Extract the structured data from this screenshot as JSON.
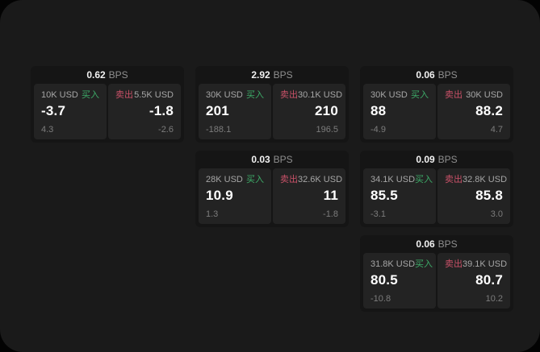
{
  "colors": {
    "background_outer": "#030303",
    "surface": "#1a1a1a",
    "card": "#151515",
    "panel": "#232323",
    "buy_accent": "#3dab68",
    "sell_accent": "#c95168",
    "value_text": "#ffffff",
    "muted_text": "#a6a6a6",
    "faint_text": "#7c7c7c"
  },
  "cards": [
    {
      "bps_value": "0.62",
      "bps_unit": "BPS",
      "buy": {
        "amount": "10K USD",
        "label": "买入",
        "value": "-3.7",
        "delta": "4.3"
      },
      "sell": {
        "amount": "5.5K USD",
        "label": "卖出",
        "value": "-1.8",
        "delta": "-2.6"
      }
    },
    {
      "bps_value": "2.92",
      "bps_unit": "BPS",
      "buy": {
        "amount": "30K USD",
        "label": "买入",
        "value": "201",
        "delta": "-188.1"
      },
      "sell": {
        "amount": "30.1K USD",
        "label": "卖出",
        "value": "210",
        "delta": "196.5"
      }
    },
    {
      "bps_value": "0.06",
      "bps_unit": "BPS",
      "buy": {
        "amount": "30K USD",
        "label": "买入",
        "value": "88",
        "delta": "-4.9"
      },
      "sell": {
        "amount": "30K USD",
        "label": "卖出",
        "value": "88.2",
        "delta": "4.7"
      }
    },
    {
      "bps_value": "0.03",
      "bps_unit": "BPS",
      "buy": {
        "amount": "28K USD",
        "label": "买入",
        "value": "10.9",
        "delta": "1.3"
      },
      "sell": {
        "amount": "32.6K USD",
        "label": "卖出",
        "value": "11",
        "delta": "-1.8"
      }
    },
    {
      "bps_value": "0.09",
      "bps_unit": "BPS",
      "buy": {
        "amount": "34.1K USD",
        "label": "买入",
        "value": "85.5",
        "delta": "-3.1"
      },
      "sell": {
        "amount": "32.8K USD",
        "label": "卖出",
        "value": "85.8",
        "delta": "3.0"
      }
    },
    {
      "bps_value": "0.06",
      "bps_unit": "BPS",
      "buy": {
        "amount": "31.8K USD",
        "label": "买入",
        "value": "80.5",
        "delta": "-10.8"
      },
      "sell": {
        "amount": "39.1K USD",
        "label": "卖出",
        "value": "80.7",
        "delta": "10.2"
      }
    }
  ]
}
